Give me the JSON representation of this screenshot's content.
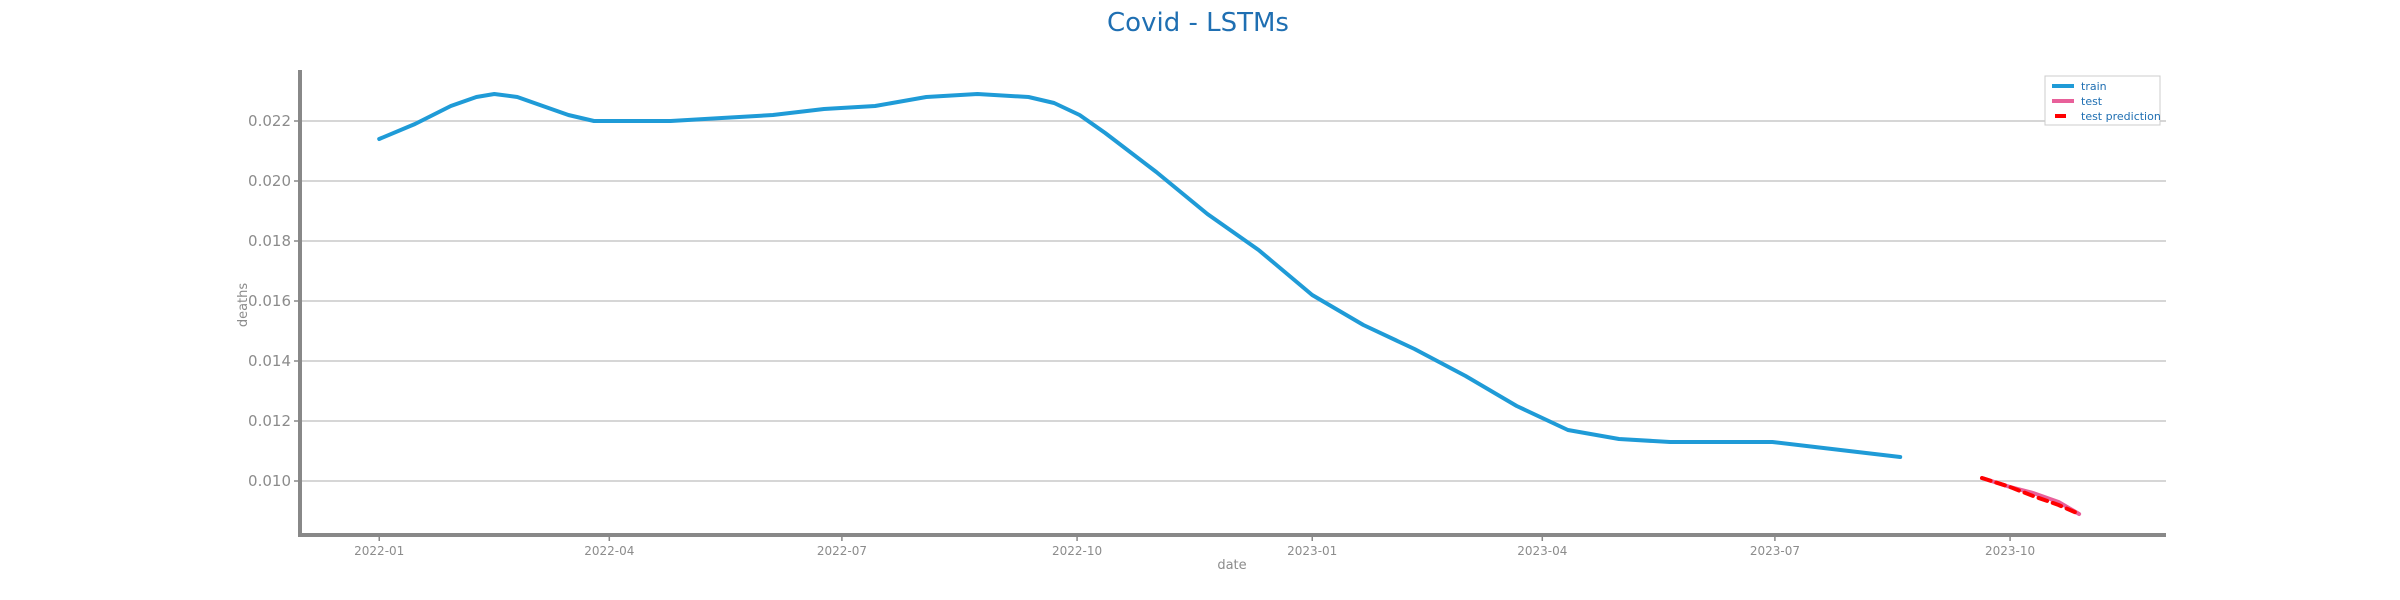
{
  "chart_data": {
    "type": "line",
    "title": "Covid - LSTMs",
    "xlabel": "date",
    "ylabel": "deaths",
    "x_ticks": [
      "2022-01",
      "2022-04",
      "2022-07",
      "2022-10",
      "2023-01",
      "2023-04",
      "2023-07",
      "2023-10"
    ],
    "y_ticks": [
      "0.010",
      "0.012",
      "0.014",
      "0.016",
      "0.018",
      "0.020",
      "0.022"
    ],
    "xlim": [
      "2021-12-01",
      "2023-12-01"
    ],
    "ylim": [
      0.0082,
      0.0237
    ],
    "grid": "horizontal",
    "legend_position": "top-right",
    "series": [
      {
        "name": "train",
        "color": "#1f9bd7",
        "style": "solid",
        "points": [
          [
            "2022-01-01",
            0.0214
          ],
          [
            "2022-01-15",
            0.0219
          ],
          [
            "2022-01-29",
            0.0225
          ],
          [
            "2022-02-08",
            0.0228
          ],
          [
            "2022-02-15",
            0.0229
          ],
          [
            "2022-02-24",
            0.0228
          ],
          [
            "2022-03-06",
            0.0225
          ],
          [
            "2022-03-16",
            0.0222
          ],
          [
            "2022-03-26",
            0.022
          ],
          [
            "2022-04-05",
            0.022
          ],
          [
            "2022-04-25",
            0.022
          ],
          [
            "2022-05-15",
            0.0221
          ],
          [
            "2022-06-04",
            0.0222
          ],
          [
            "2022-06-24",
            0.0224
          ],
          [
            "2022-07-14",
            0.0225
          ],
          [
            "2022-08-03",
            0.0228
          ],
          [
            "2022-08-23",
            0.0229
          ],
          [
            "2022-09-12",
            0.0228
          ],
          [
            "2022-09-22",
            0.0226
          ],
          [
            "2022-10-02",
            0.0222
          ],
          [
            "2022-10-12",
            0.0216
          ],
          [
            "2022-11-01",
            0.0203
          ],
          [
            "2022-11-21",
            0.0189
          ],
          [
            "2022-12-11",
            0.0177
          ],
          [
            "2023-01-01",
            0.0162
          ],
          [
            "2023-01-21",
            0.0152
          ],
          [
            "2023-02-10",
            0.0144
          ],
          [
            "2023-03-02",
            0.0135
          ],
          [
            "2023-03-22",
            0.0125
          ],
          [
            "2023-04-11",
            0.0117
          ],
          [
            "2023-05-01",
            0.0114
          ],
          [
            "2023-05-21",
            0.0113
          ],
          [
            "2023-06-10",
            0.0113
          ],
          [
            "2023-06-30",
            0.0113
          ],
          [
            "2023-07-20",
            0.0111
          ],
          [
            "2023-08-09",
            0.0109
          ],
          [
            "2023-08-19",
            0.0108
          ]
        ]
      },
      {
        "name": "test",
        "color": "#e8609a",
        "style": "solid",
        "points": [
          [
            "2023-09-20",
            0.0101
          ],
          [
            "2023-10-01",
            0.0098
          ],
          [
            "2023-10-10",
            0.0096
          ],
          [
            "2023-10-20",
            0.0093
          ],
          [
            "2023-10-28",
            0.0089
          ]
        ]
      },
      {
        "name": "test prediction",
        "color": "#ff0000",
        "style": "dashed",
        "points": [
          [
            "2023-09-20",
            0.0101
          ],
          [
            "2023-10-01",
            0.0098
          ],
          [
            "2023-10-10",
            0.0095
          ],
          [
            "2023-10-20",
            0.0092
          ],
          [
            "2023-10-28",
            0.0089
          ]
        ]
      }
    ]
  }
}
